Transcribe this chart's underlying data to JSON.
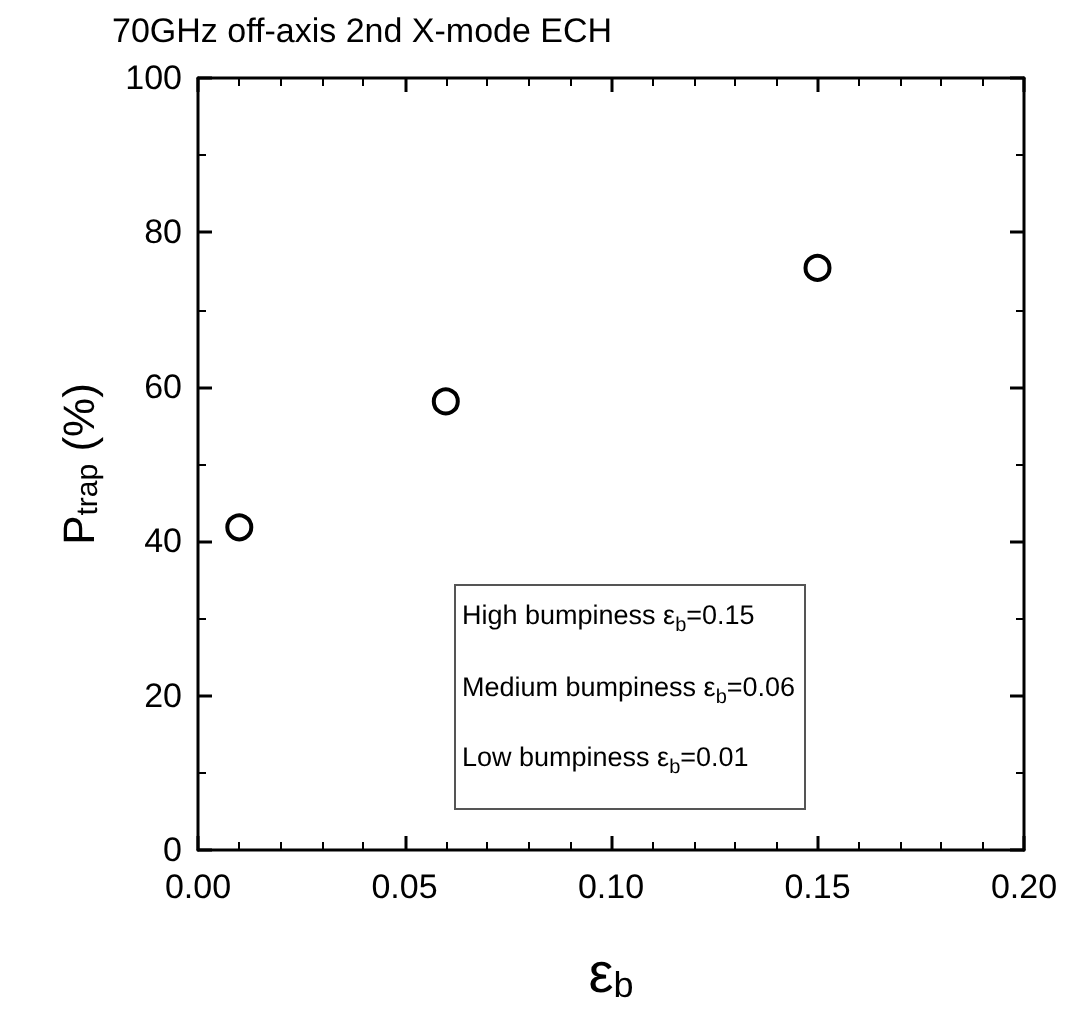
{
  "chart_data": {
    "type": "scatter",
    "title": "70GHz off-axis 2nd X-mode ECH",
    "xlabel": "ε$_{b}$",
    "ylabel": "P$_{trap}$ (%)",
    "x": [
      0.01,
      0.06,
      0.15
    ],
    "series": [
      {
        "color": "#000000",
        "values": [
          41.8,
          58.1,
          75.4
        ]
      }
    ],
    "xlim": [
      0,
      0.2
    ],
    "xticks": [
      {
        "value": 0,
        "label": "0.00"
      },
      {
        "value": 0.05,
        "label": "0.05"
      },
      {
        "value": 0.1,
        "label": "0.10"
      },
      {
        "value": 0.15,
        "label": "0.15"
      },
      {
        "value": 0.2,
        "label": "0.20"
      }
    ],
    "ylim": [
      0,
      100
    ],
    "yticks": [
      0,
      20,
      40,
      60,
      80,
      100
    ],
    "marker": "circle",
    "annotations": [
      "High bumpiness ε$_{b}$=0.15",
      "Medium bumpiness ε$_{b}$=0.06",
      "Low bumpiness ε$_{b}$=0.01"
    ]
  }
}
